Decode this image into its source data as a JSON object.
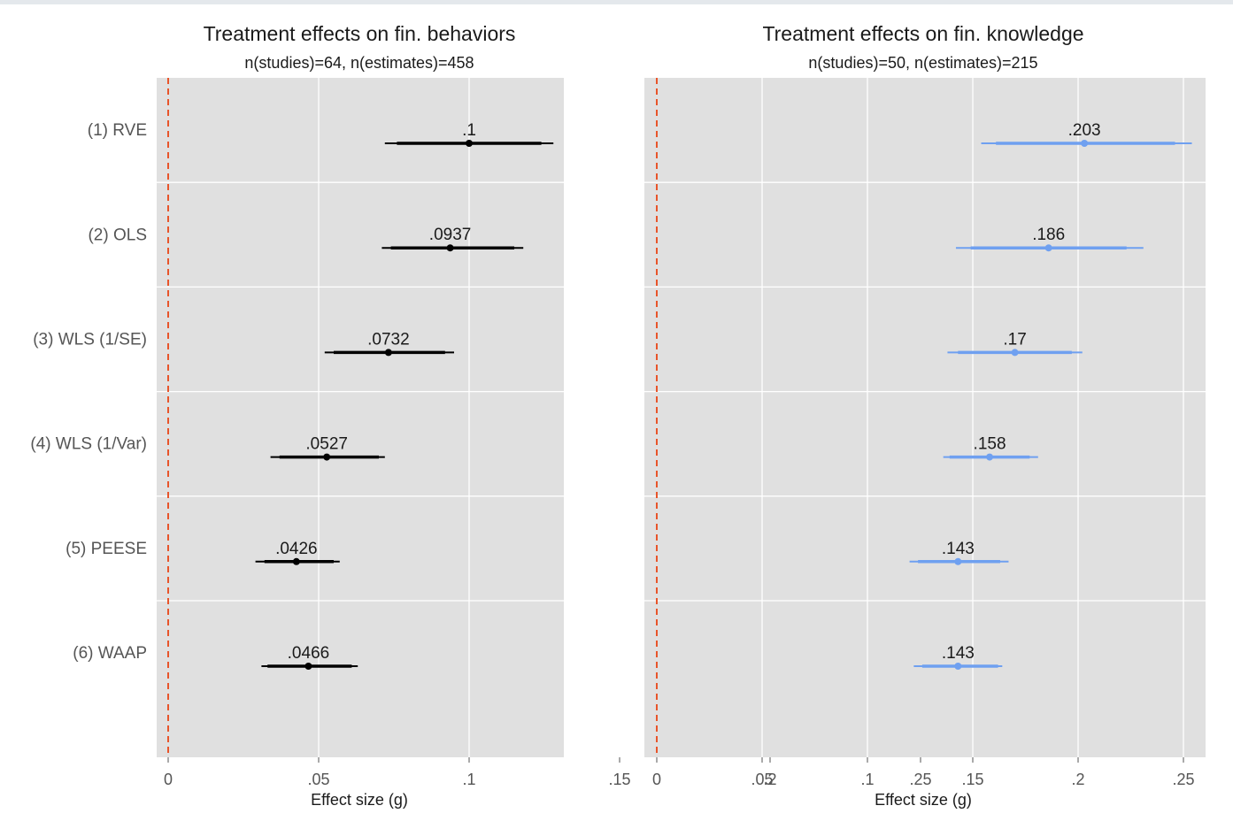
{
  "chart_data": [
    {
      "type": "forest",
      "title": "Treatment effects on fin. behaviors",
      "subtitle": "n(studies)=64, n(estimates)=458",
      "xlabel": "Effect size (g)",
      "xlim": [
        0,
        0.26
      ],
      "xticks": [
        0,
        0.05,
        0.1,
        0.15,
        0.2,
        0.25
      ],
      "xtick_labels": [
        "0",
        ".05",
        ".1",
        ".15",
        ".2",
        ".25"
      ],
      "reference_line": 0,
      "reference_line_color": "#e8542a",
      "grid": true,
      "background": "#e0e0e0",
      "marker_color": "#000000",
      "categories": [
        "(1) RVE",
        "(2) OLS",
        "(3) WLS (1/SE)",
        "(4) WLS (1/Var)",
        "(5) PEESE",
        "(6) WAAP"
      ],
      "values": [
        0.1,
        0.0937,
        0.0732,
        0.0527,
        0.0426,
        0.0466
      ],
      "value_labels": [
        ".1",
        ".0937",
        ".0732",
        ".0527",
        ".0426",
        ".0466"
      ],
      "ci90": [
        [
          0.076,
          0.124
        ],
        [
          0.074,
          0.115
        ],
        [
          0.055,
          0.092
        ],
        [
          0.037,
          0.07
        ],
        [
          0.032,
          0.055
        ],
        [
          0.033,
          0.061
        ]
      ],
      "ci95": [
        [
          0.072,
          0.128
        ],
        [
          0.071,
          0.118
        ],
        [
          0.052,
          0.095
        ],
        [
          0.034,
          0.072
        ],
        [
          0.029,
          0.057
        ],
        [
          0.031,
          0.063
        ]
      ]
    },
    {
      "type": "forest",
      "title": "Treatment effects on fin. knowledge",
      "subtitle": "n(studies)=50, n(estimates)=215",
      "xlabel": "Effect size (g)",
      "xlim": [
        0,
        0.26
      ],
      "xticks": [
        0,
        0.05,
        0.1,
        0.15,
        0.2,
        0.25
      ],
      "xtick_labels": [
        "0",
        ".05",
        ".1",
        ".15",
        ".2",
        ".25"
      ],
      "reference_line": 0,
      "reference_line_color": "#e8542a",
      "grid": true,
      "background": "#e0e0e0",
      "marker_color": "#6fa0f0",
      "categories": [
        "(1) RVE",
        "(2) OLS",
        "(3) WLS (1/SE)",
        "(4) WLS (1/Var)",
        "(5) PEESE",
        "(6) WAAP"
      ],
      "values": [
        0.203,
        0.186,
        0.17,
        0.158,
        0.143,
        0.143
      ],
      "value_labels": [
        ".203",
        ".186",
        ".17",
        ".158",
        ".143",
        ".143"
      ],
      "ci90": [
        [
          0.161,
          0.246
        ],
        [
          0.149,
          0.223
        ],
        [
          0.143,
          0.197
        ],
        [
          0.139,
          0.177
        ],
        [
          0.124,
          0.163
        ],
        [
          0.126,
          0.162
        ]
      ],
      "ci95": [
        [
          0.154,
          0.254
        ],
        [
          0.142,
          0.231
        ],
        [
          0.138,
          0.202
        ],
        [
          0.136,
          0.181
        ],
        [
          0.12,
          0.167
        ],
        [
          0.122,
          0.164
        ]
      ]
    }
  ]
}
